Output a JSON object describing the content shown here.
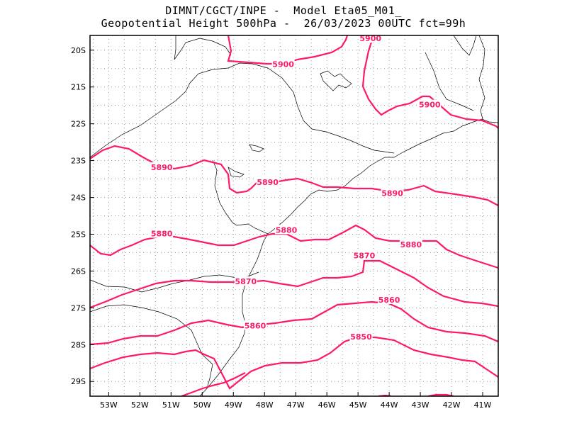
{
  "header": {
    "line1": "DIMNT/CGCT/INPE -  Model Eta05_M01_",
    "line2": "Geopotential Height 500hPa -  26/03/2023 00UTC fct=99h"
  },
  "axes": {
    "lon_labels": [
      "53W",
      "52W",
      "51W",
      "50W",
      "49W",
      "48W",
      "47W",
      "46W",
      "45W",
      "44W",
      "43W",
      "42W",
      "41W"
    ],
    "lat_labels": [
      "20S",
      "21S",
      "22S",
      "23S",
      "24S",
      "25S",
      "26S",
      "27S",
      "28S",
      "29S"
    ]
  },
  "colors": {
    "contour": "#ff1a66",
    "coast": "#000000",
    "grid": "#9a9a9a"
  },
  "chart_data": {
    "type": "map-contour",
    "variable": "Geopotential Height 500hPa",
    "contour_levels": [
      5850,
      5860,
      5870,
      5880,
      5890,
      5900
    ],
    "labels": [
      {
        "text": "5900",
        "lon": -47.4,
        "lat": -20.4
      },
      {
        "text": "5900",
        "lon": -44.6,
        "lat": -19.7
      },
      {
        "text": "5900",
        "lon": -42.7,
        "lat": -21.5
      },
      {
        "text": "5890",
        "lon": -51.3,
        "lat": -23.2
      },
      {
        "text": "5890",
        "lon": -47.9,
        "lat": -23.6
      },
      {
        "text": "5890",
        "lon": -43.9,
        "lat": -23.9
      },
      {
        "text": "5880",
        "lon": -51.3,
        "lat": -25.0
      },
      {
        "text": "5880",
        "lon": -47.3,
        "lat": -24.9
      },
      {
        "text": "5880",
        "lon": -43.3,
        "lat": -25.3
      },
      {
        "text": "5870",
        "lon": -48.6,
        "lat": -26.3
      },
      {
        "text": "5870",
        "lon": -44.8,
        "lat": -25.6
      },
      {
        "text": "5860",
        "lon": -48.3,
        "lat": -27.5
      },
      {
        "text": "5860",
        "lon": -44.0,
        "lat": -26.8
      },
      {
        "text": "5850",
        "lon": -44.9,
        "lat": -27.8
      }
    ],
    "lon_range": [
      -53.6,
      -40.5
    ],
    "lat_range": [
      -29.4,
      -19.6
    ],
    "grid": true
  }
}
